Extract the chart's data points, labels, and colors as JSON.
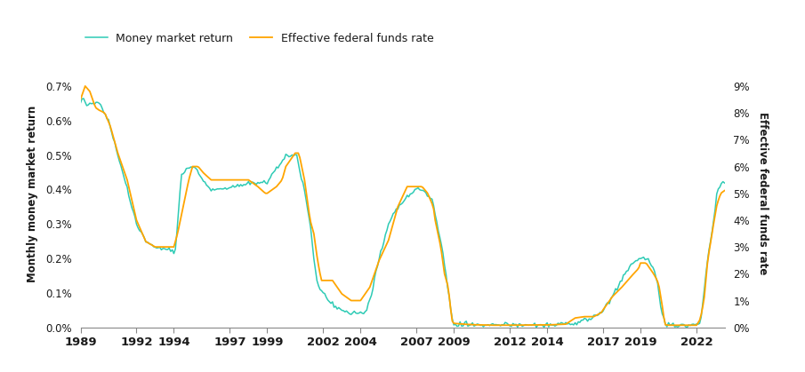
{
  "legend_labels": [
    "Money market return",
    "Effective federal funds rate"
  ],
  "line_colors": [
    "#2ECBB5",
    "#FFA500"
  ],
  "left_ylabel": "Monthly money market return",
  "right_ylabel": "Effective federal funds rate",
  "background_color": "#ffffff",
  "line1_lw": 1.1,
  "line2_lw": 1.3,
  "x_ticks": [
    1989,
    1992,
    1994,
    1997,
    1999,
    2002,
    2004,
    2007,
    2009,
    2012,
    2014,
    2017,
    2019,
    2022
  ],
  "left_yticks": [
    0.0,
    0.001,
    0.002,
    0.003,
    0.004,
    0.005,
    0.006,
    0.007
  ],
  "right_yticks": [
    0,
    1,
    2,
    3,
    4,
    5,
    6,
    7,
    8,
    9
  ],
  "left_ylim": [
    0,
    0.00777
  ],
  "right_ylim": [
    0,
    9.99
  ],
  "xlim": [
    1989.0,
    2023.5
  ],
  "noise_seed": 42,
  "noise_scale": 3.5e-05,
  "mmr_control_points": [
    [
      1989.0,
      0.0065
    ],
    [
      1989.1,
      0.0067
    ],
    [
      1989.25,
      0.0065
    ],
    [
      1989.5,
      0.0065
    ],
    [
      1990.0,
      0.0065
    ],
    [
      1990.5,
      0.006
    ],
    [
      1991.0,
      0.005
    ],
    [
      1991.5,
      0.004
    ],
    [
      1992.0,
      0.003
    ],
    [
      1992.5,
      0.0025
    ],
    [
      1993.0,
      0.0023
    ],
    [
      1993.5,
      0.0023
    ],
    [
      1994.0,
      0.0022
    ],
    [
      1994.1,
      0.0023
    ],
    [
      1994.4,
      0.0044
    ],
    [
      1994.7,
      0.0046
    ],
    [
      1994.9,
      0.0047
    ],
    [
      1995.2,
      0.0046
    ],
    [
      1995.5,
      0.0043
    ],
    [
      1996.0,
      0.004
    ],
    [
      1996.5,
      0.004
    ],
    [
      1997.0,
      0.0041
    ],
    [
      1997.5,
      0.0041
    ],
    [
      1998.0,
      0.0042
    ],
    [
      1998.5,
      0.0042
    ],
    [
      1999.0,
      0.0042
    ],
    [
      1999.5,
      0.0046
    ],
    [
      2000.0,
      0.005
    ],
    [
      2000.3,
      0.005
    ],
    [
      2000.6,
      0.0049
    ],
    [
      2001.0,
      0.004
    ],
    [
      2001.3,
      0.003
    ],
    [
      2001.5,
      0.002
    ],
    [
      2001.7,
      0.0013
    ],
    [
      2001.9,
      0.001
    ],
    [
      2002.0,
      0.001
    ],
    [
      2002.3,
      0.0008
    ],
    [
      2002.6,
      0.0006
    ],
    [
      2003.0,
      0.0005
    ],
    [
      2003.5,
      0.00042
    ],
    [
      2004.0,
      0.0004
    ],
    [
      2004.3,
      0.00042
    ],
    [
      2004.6,
      0.001
    ],
    [
      2005.0,
      0.002
    ],
    [
      2005.5,
      0.003
    ],
    [
      2006.0,
      0.0035
    ],
    [
      2006.5,
      0.0038
    ],
    [
      2007.0,
      0.004
    ],
    [
      2007.3,
      0.004
    ],
    [
      2007.5,
      0.0039
    ],
    [
      2007.8,
      0.0037
    ],
    [
      2008.0,
      0.0033
    ],
    [
      2008.3,
      0.0025
    ],
    [
      2008.6,
      0.0015
    ],
    [
      2008.9,
      0.0003
    ],
    [
      2009.0,
      0.0001
    ],
    [
      2009.5,
      8e-05
    ],
    [
      2010.0,
      7e-05
    ],
    [
      2011.0,
      7e-05
    ],
    [
      2012.0,
      7e-05
    ],
    [
      2013.0,
      7e-05
    ],
    [
      2014.0,
      7e-05
    ],
    [
      2015.0,
      8e-05
    ],
    [
      2015.5,
      0.0001
    ],
    [
      2016.0,
      0.0002
    ],
    [
      2016.5,
      0.0003
    ],
    [
      2017.0,
      0.0005
    ],
    [
      2017.5,
      0.0009
    ],
    [
      2018.0,
      0.0014
    ],
    [
      2018.5,
      0.0018
    ],
    [
      2018.9,
      0.002
    ],
    [
      2019.0,
      0.002
    ],
    [
      2019.3,
      0.002
    ],
    [
      2019.5,
      0.0019
    ],
    [
      2019.7,
      0.0017
    ],
    [
      2019.9,
      0.0013
    ],
    [
      2020.1,
      0.0005
    ],
    [
      2020.3,
      0.0001
    ],
    [
      2020.5,
      8e-05
    ],
    [
      2021.0,
      7e-05
    ],
    [
      2021.5,
      7e-05
    ],
    [
      2022.0,
      7e-05
    ],
    [
      2022.2,
      0.0001
    ],
    [
      2022.4,
      0.001
    ],
    [
      2022.6,
      0.002
    ],
    [
      2022.9,
      0.003
    ],
    [
      2023.1,
      0.004
    ],
    [
      2023.3,
      0.0042
    ],
    [
      2023.5,
      0.0042
    ]
  ],
  "fed_control_points": [
    [
      1989.0,
      8.5
    ],
    [
      1989.25,
      9.0
    ],
    [
      1989.5,
      8.8
    ],
    [
      1989.8,
      8.2
    ],
    [
      1990.0,
      8.1
    ],
    [
      1990.3,
      8.0
    ],
    [
      1990.6,
      7.5
    ],
    [
      1991.0,
      6.5
    ],
    [
      1991.5,
      5.5
    ],
    [
      1992.0,
      4.0
    ],
    [
      1992.5,
      3.2
    ],
    [
      1993.0,
      3.0
    ],
    [
      1993.5,
      3.0
    ],
    [
      1994.0,
      3.0
    ],
    [
      1994.2,
      3.5
    ],
    [
      1994.5,
      4.5
    ],
    [
      1994.8,
      5.5
    ],
    [
      1995.0,
      6.0
    ],
    [
      1995.3,
      6.0
    ],
    [
      1995.6,
      5.75
    ],
    [
      1996.0,
      5.5
    ],
    [
      1996.5,
      5.5
    ],
    [
      1997.0,
      5.5
    ],
    [
      1997.5,
      5.5
    ],
    [
      1998.0,
      5.5
    ],
    [
      1998.5,
      5.25
    ],
    [
      1998.9,
      5.0
    ],
    [
      1999.0,
      5.0
    ],
    [
      1999.5,
      5.25
    ],
    [
      1999.8,
      5.5
    ],
    [
      2000.0,
      6.0
    ],
    [
      2000.5,
      6.5
    ],
    [
      2000.7,
      6.5
    ],
    [
      2001.0,
      5.5
    ],
    [
      2001.3,
      4.0
    ],
    [
      2001.5,
      3.5
    ],
    [
      2001.7,
      2.5
    ],
    [
      2001.9,
      1.75
    ],
    [
      2002.0,
      1.75
    ],
    [
      2002.5,
      1.75
    ],
    [
      2003.0,
      1.25
    ],
    [
      2003.5,
      1.0
    ],
    [
      2004.0,
      1.0
    ],
    [
      2004.5,
      1.5
    ],
    [
      2005.0,
      2.5
    ],
    [
      2005.5,
      3.25
    ],
    [
      2006.0,
      4.5
    ],
    [
      2006.5,
      5.25
    ],
    [
      2007.0,
      5.25
    ],
    [
      2007.3,
      5.25
    ],
    [
      2007.6,
      5.0
    ],
    [
      2007.9,
      4.5
    ],
    [
      2008.0,
      4.0
    ],
    [
      2008.3,
      3.0
    ],
    [
      2008.5,
      2.0
    ],
    [
      2008.7,
      1.5
    ],
    [
      2008.9,
      0.25
    ],
    [
      2009.0,
      0.15
    ],
    [
      2009.5,
      0.12
    ],
    [
      2010.0,
      0.1
    ],
    [
      2011.0,
      0.08
    ],
    [
      2012.0,
      0.08
    ],
    [
      2013.0,
      0.09
    ],
    [
      2014.0,
      0.09
    ],
    [
      2015.0,
      0.12
    ],
    [
      2015.5,
      0.35
    ],
    [
      2016.0,
      0.4
    ],
    [
      2016.5,
      0.4
    ],
    [
      2016.9,
      0.55
    ],
    [
      2017.0,
      0.66
    ],
    [
      2017.5,
      1.15
    ],
    [
      2018.0,
      1.5
    ],
    [
      2018.5,
      1.9
    ],
    [
      2018.9,
      2.2
    ],
    [
      2019.0,
      2.4
    ],
    [
      2019.3,
      2.4
    ],
    [
      2019.5,
      2.2
    ],
    [
      2019.7,
      2.0
    ],
    [
      2019.9,
      1.75
    ],
    [
      2020.0,
      1.5
    ],
    [
      2020.2,
      0.65
    ],
    [
      2020.3,
      0.1
    ],
    [
      2020.5,
      0.08
    ],
    [
      2021.0,
      0.08
    ],
    [
      2021.5,
      0.08
    ],
    [
      2022.0,
      0.08
    ],
    [
      2022.2,
      0.3
    ],
    [
      2022.4,
      1.0
    ],
    [
      2022.6,
      2.5
    ],
    [
      2022.9,
      3.8
    ],
    [
      2023.1,
      4.6
    ],
    [
      2023.3,
      5.0
    ],
    [
      2023.5,
      5.1
    ]
  ]
}
